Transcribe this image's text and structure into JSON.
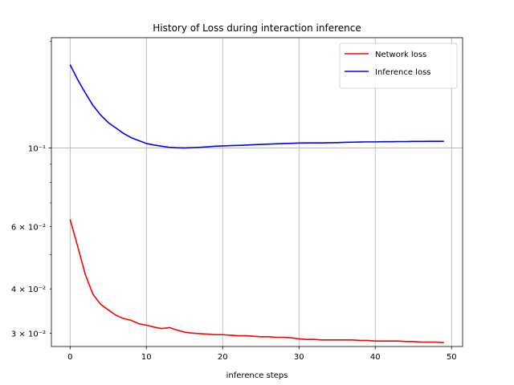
{
  "chart_data": {
    "type": "line",
    "title": "History of Loss during interaction inference",
    "xlabel": "inference steps",
    "ylabel": "",
    "xlim": [
      -2.45,
      51.45
    ],
    "ylim": [
      0.0275,
      0.205
    ],
    "yscale": "log",
    "grid": true,
    "legend_position": "top-right",
    "x_ticks": [
      0,
      10,
      20,
      30,
      40,
      50
    ],
    "x_tick_labels": [
      "0",
      "10",
      "20",
      "30",
      "40",
      "50"
    ],
    "y_ticks": [
      0.03,
      0.04,
      0.06,
      0.1
    ],
    "y_tick_labels": [
      "3 × 10⁻²",
      "4 × 10⁻²",
      "6 × 10⁻²",
      "10⁻¹"
    ],
    "series": [
      {
        "name": "Network loss",
        "color": "#ff0000",
        "x": [
          0,
          1,
          2,
          3,
          4,
          5,
          6,
          7,
          8,
          9,
          10,
          11,
          12,
          13,
          14,
          15,
          16,
          17,
          18,
          19,
          20,
          21,
          22,
          23,
          24,
          25,
          26,
          27,
          28,
          29,
          30,
          31,
          32,
          33,
          34,
          35,
          36,
          37,
          38,
          39,
          40,
          41,
          42,
          43,
          44,
          45,
          46,
          47,
          48,
          49
        ],
        "values": [
          0.0629,
          0.0527,
          0.0439,
          0.0386,
          0.0362,
          0.0349,
          0.0337,
          0.033,
          0.0326,
          0.0319,
          0.0316,
          0.0312,
          0.0309,
          0.0311,
          0.0306,
          0.0302,
          0.03,
          0.0299,
          0.0298,
          0.0297,
          0.0297,
          0.0296,
          0.0295,
          0.0295,
          0.0294,
          0.0293,
          0.0293,
          0.0292,
          0.0292,
          0.0291,
          0.0289,
          0.0288,
          0.0288,
          0.0287,
          0.0287,
          0.0287,
          0.0287,
          0.0287,
          0.0286,
          0.0286,
          0.0285,
          0.0285,
          0.0285,
          0.0285,
          0.0284,
          0.0284,
          0.0283,
          0.0283,
          0.0283,
          0.0282
        ]
      },
      {
        "name": "Inference loss",
        "color": "#0000ff",
        "x": [
          0,
          1,
          2,
          3,
          4,
          5,
          6,
          7,
          8,
          9,
          10,
          11,
          12,
          13,
          14,
          15,
          16,
          17,
          18,
          19,
          20,
          21,
          22,
          23,
          24,
          25,
          26,
          27,
          28,
          29,
          30,
          31,
          32,
          33,
          34,
          35,
          36,
          37,
          38,
          39,
          40,
          41,
          42,
          43,
          44,
          45,
          46,
          47,
          48,
          49
        ],
        "values": [
          0.172,
          0.156,
          0.143,
          0.132,
          0.124,
          0.118,
          0.114,
          0.11,
          0.107,
          0.105,
          0.103,
          0.102,
          0.1012,
          0.1005,
          0.1002,
          0.1001,
          0.1003,
          0.1005,
          0.1008,
          0.1012,
          0.1014,
          0.1016,
          0.1017,
          0.1019,
          0.1022,
          0.1024,
          0.1026,
          0.1028,
          0.103,
          0.1031,
          0.1033,
          0.1034,
          0.1034,
          0.1034,
          0.1035,
          0.1036,
          0.1038,
          0.1039,
          0.104,
          0.1041,
          0.1041,
          0.1042,
          0.1042,
          0.1043,
          0.1043,
          0.1044,
          0.1044,
          0.1045,
          0.1045,
          0.1045
        ]
      }
    ]
  }
}
